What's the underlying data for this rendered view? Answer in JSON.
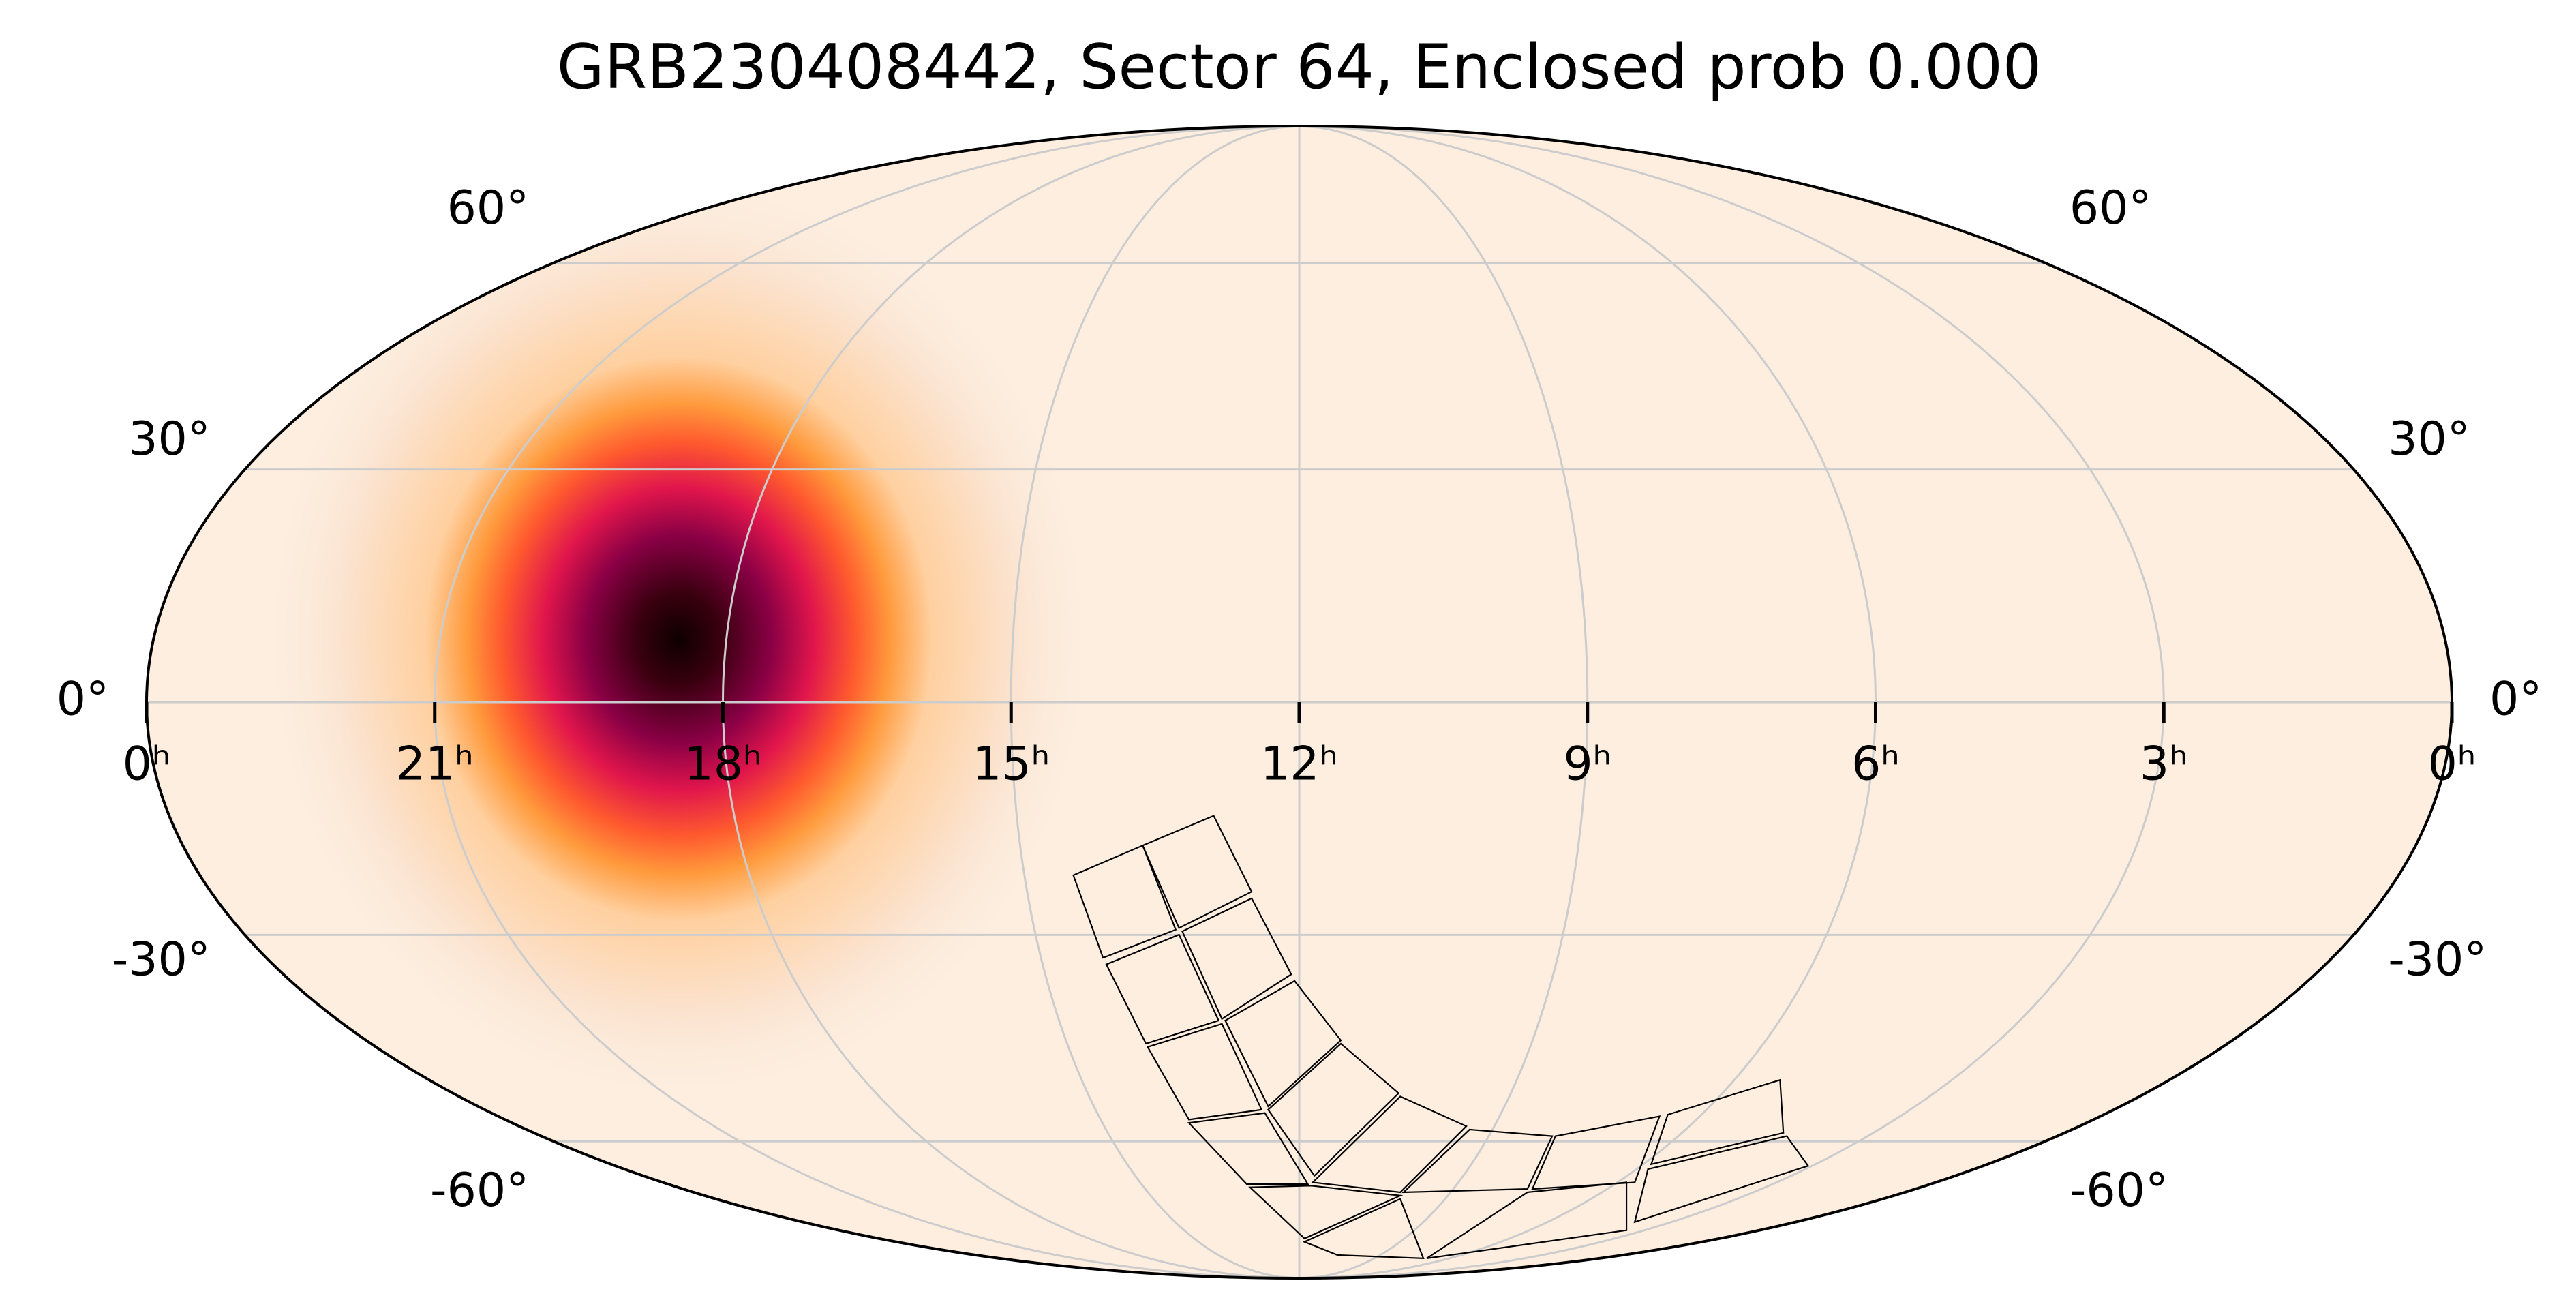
{
  "chart_data": {
    "type": "mollweide",
    "title": "GRB230408442, Sector 64, Enclosed prob 0.000",
    "xlim": [
      24,
      0
    ],
    "ylim": [
      -90,
      90
    ],
    "xticks": [
      {
        "value": 24,
        "label": "0ʰ"
      },
      {
        "value": 21,
        "label": "21ʰ"
      },
      {
        "value": 18,
        "label": "18ʰ"
      },
      {
        "value": 15,
        "label": "15ʰ"
      },
      {
        "value": 12,
        "label": "12ʰ"
      },
      {
        "value": 9,
        "label": "9ʰ"
      },
      {
        "value": 6,
        "label": "6ʰ"
      },
      {
        "value": 3,
        "label": "3ʰ"
      },
      {
        "value": 0,
        "label": "0ʰ"
      }
    ],
    "yticks": [
      {
        "value": -60,
        "label": "-60°"
      },
      {
        "value": -30,
        "label": "-30°"
      },
      {
        "value": 0,
        "label": "0°"
      },
      {
        "value": 30,
        "label": "30°"
      },
      {
        "value": 60,
        "label": "60°"
      }
    ],
    "grid": true,
    "grid_color": "#cccccc",
    "background": "#fdeee0",
    "hotspot": {
      "ra": 18.5,
      "dec": 8
    }
  }
}
